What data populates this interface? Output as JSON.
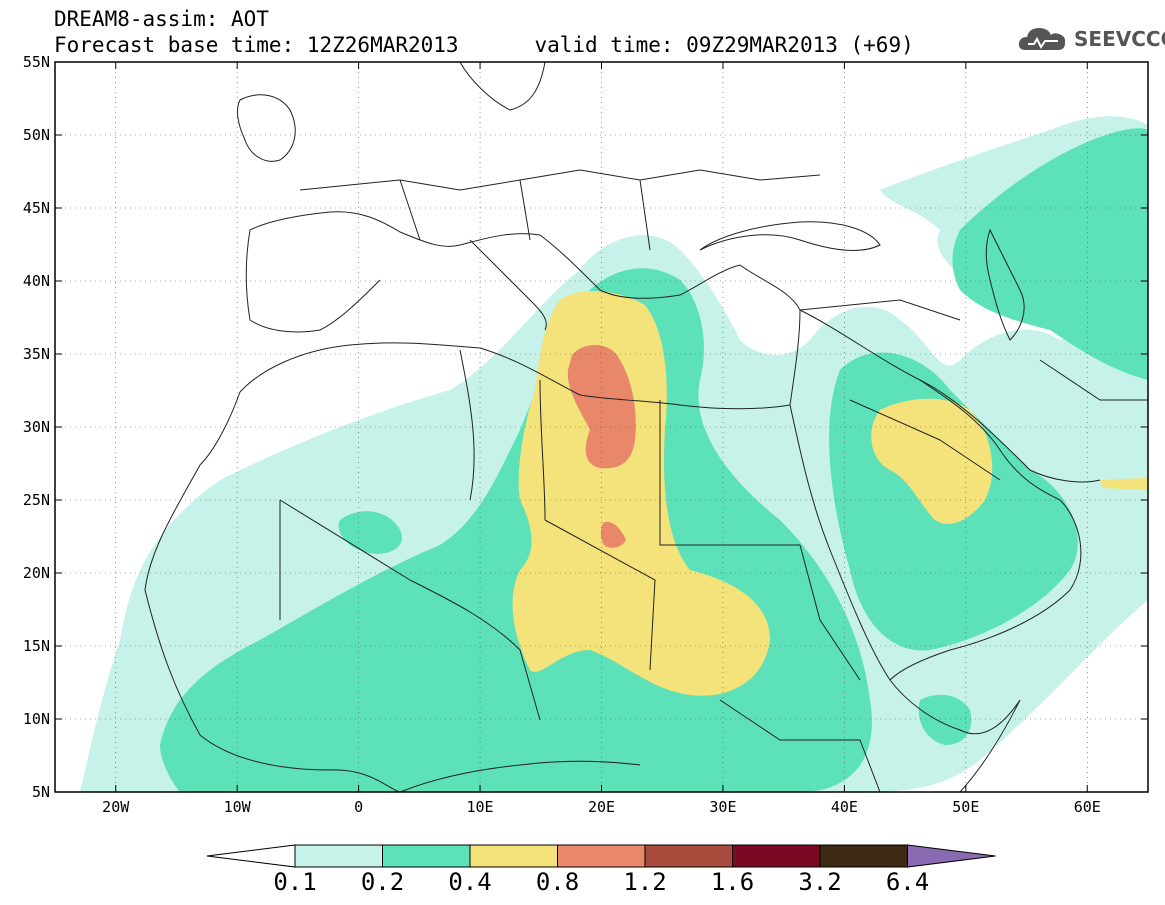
{
  "title": {
    "line1": "DREAM8-assim: AOT",
    "base_time": "Forecast base time: 12Z26MAR2013",
    "valid_time": "valid time: 09Z29MAR2013 (+69)"
  },
  "logo": {
    "text": "SEEVCCC",
    "icon": "cloud-icon"
  },
  "map": {
    "lat_range": [
      5,
      55
    ],
    "lon_range": [
      -25,
      65
    ],
    "lat_ticks": [
      "55N",
      "50N",
      "45N",
      "40N",
      "35N",
      "30N",
      "25N",
      "20N",
      "15N",
      "10N",
      "5N"
    ],
    "lon_ticks": [
      "20W",
      "10W",
      "0",
      "10E",
      "20E",
      "30E",
      "40E",
      "50E",
      "60E"
    ]
  },
  "colorbar": {
    "labels": [
      "0.1",
      "0.2",
      "0.4",
      "0.8",
      "1.2",
      "1.6",
      "3.2",
      "6.4"
    ],
    "colors": [
      "#c6f2ea",
      "#5ce1b8",
      "#f4e27a",
      "#e8876a",
      "#a84a3c",
      "#7a0a24",
      "#3e2a14",
      "#8a6ab0"
    ]
  },
  "contour_colors": {
    "level_0_1": "#c6f2ea",
    "level_0_2": "#5ce1b8",
    "level_0_4": "#f4e27a",
    "level_0_8": "#e8876a"
  }
}
